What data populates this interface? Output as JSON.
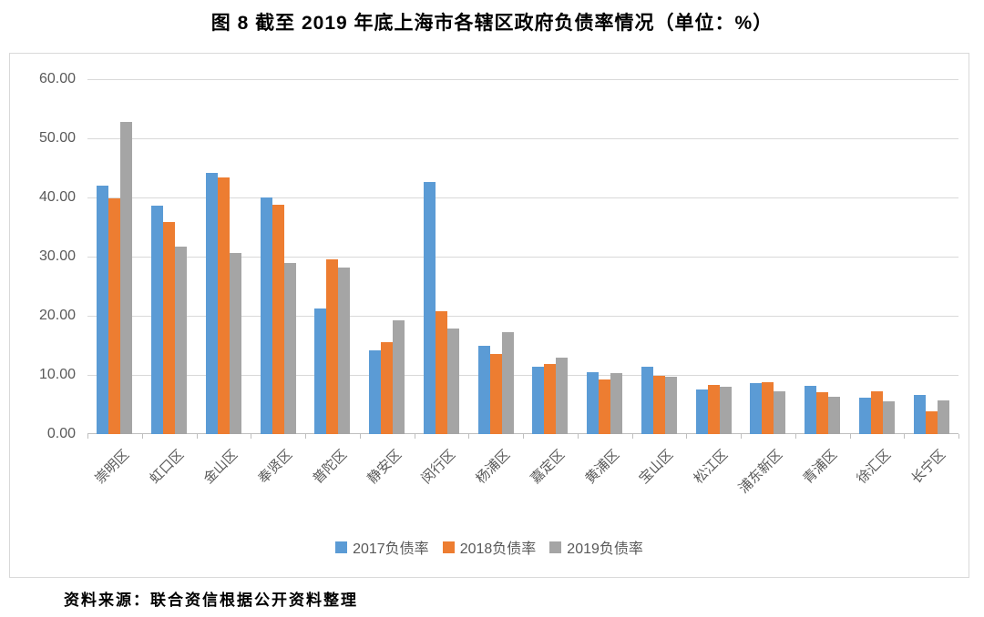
{
  "page": {
    "title": "图 8  截至 2019 年底上海市各辖区政府负债率情况（单位：%）",
    "source": "资料来源：联合资信根据公开资料整理"
  },
  "chart_data": {
    "type": "bar",
    "title": "图 8 截至 2019 年底上海市各辖区政府负债率情况（单位：%）",
    "categories": [
      "崇明区",
      "虹口区",
      "金山区",
      "奉贤区",
      "普陀区",
      "静安区",
      "闵行区",
      "杨浦区",
      "嘉定区",
      "黄浦区",
      "宝山区",
      "松江区",
      "浦东新区",
      "青浦区",
      "徐汇区",
      "长宁区"
    ],
    "series": [
      {
        "name": "2017负债率",
        "color": "#5B9BD5",
        "values": [
          42.0,
          38.6,
          44.2,
          40.0,
          21.2,
          14.1,
          42.6,
          14.9,
          11.4,
          10.4,
          11.4,
          7.6,
          8.6,
          8.1,
          6.2,
          6.6
        ]
      },
      {
        "name": "2018负债率",
        "color": "#ED7D31",
        "values": [
          39.8,
          35.8,
          43.4,
          38.8,
          29.6,
          15.6,
          20.8,
          13.5,
          11.8,
          9.3,
          9.8,
          8.3,
          8.7,
          7.1,
          7.2,
          3.9
        ]
      },
      {
        "name": "2019负债率",
        "color": "#A5A5A5",
        "values": [
          52.8,
          31.7,
          30.6,
          29.0,
          28.2,
          19.3,
          17.8,
          17.2,
          12.9,
          10.3,
          9.7,
          8.0,
          7.2,
          6.3,
          5.6,
          5.7
        ]
      }
    ],
    "xlabel": "",
    "ylabel": "",
    "ylim": [
      0,
      60
    ],
    "ytick_step": 10,
    "yticks": [
      "0.00",
      "10.00",
      "20.00",
      "30.00",
      "40.00",
      "50.00",
      "60.00"
    ],
    "grid": true,
    "legend_position": "bottom",
    "colors": {
      "gridline": "#d9d9d9",
      "axis_line": "#bfbfbf",
      "axis_text": "#595959",
      "frame_border": "#d9d9d9"
    }
  }
}
